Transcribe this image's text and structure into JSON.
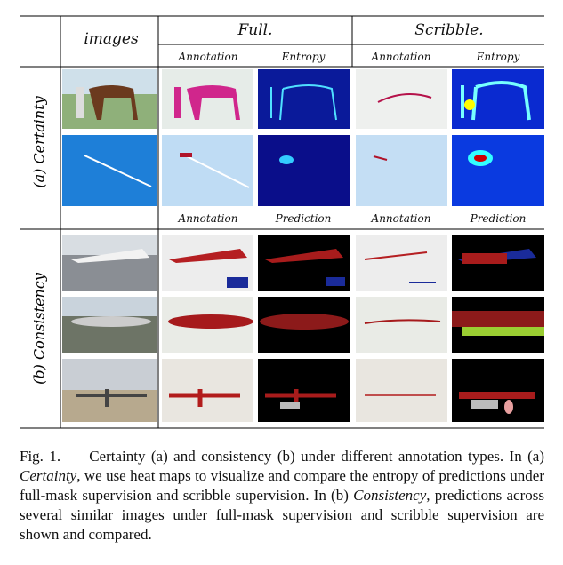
{
  "header": {
    "images": "images",
    "full": "Full.",
    "scribble": "Scribble."
  },
  "sections": [
    {
      "label": "(a) Certainty",
      "subheaders": [
        "Annotation",
        "Entropy",
        "Annotation",
        "Entropy"
      ]
    },
    {
      "label": "(b) Consistency",
      "subheaders": [
        "Annotation",
        "Prediction",
        "Annotation",
        "Prediction"
      ]
    }
  ],
  "caption": {
    "label": "Fig. 1.",
    "text": [
      "Certainty (a) and consistency (b) under different annotation types. In (a) ",
      "Certainty",
      ", we use heat maps to visualize and compare the entropy of predictions under full-mask supervision and scribble supervision. In (b) ",
      "Consistency",
      ", predictions across several similar images under full-mask supervision and scribble supervision are shown and compared."
    ]
  }
}
